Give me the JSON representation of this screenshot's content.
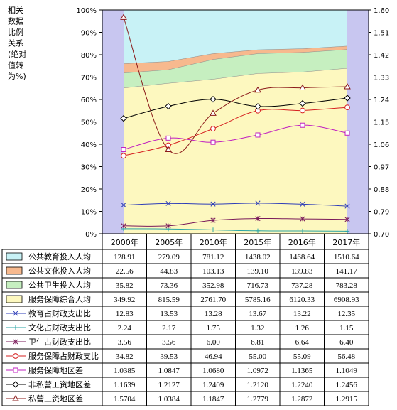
{
  "chart_data": {
    "type": "area",
    "ylabel_lines": [
      "相关",
      "数据",
      "比例",
      "关系",
      "(绝对",
      "值转",
      "为%)"
    ],
    "categories": [
      "2000年",
      "2005年",
      "2010年",
      "2015年",
      "2016年",
      "2017年"
    ],
    "y_left": {
      "ylim": [
        0,
        100
      ],
      "ticks": [
        "0%",
        "10%",
        "20%",
        "30%",
        "40%",
        "50%",
        "60%",
        "70%",
        "80%",
        "90%",
        "100%"
      ]
    },
    "y_right": {
      "ylim": [
        0.7,
        1.6
      ],
      "ticks": [
        "0.70",
        "0.79",
        "0.88",
        "0.97",
        "1.06",
        "1.15",
        "1.24",
        "1.33",
        "1.42",
        "1.51",
        "1.60"
      ]
    },
    "grid": "none",
    "legend": "data-table-below",
    "stacked_area_series": [
      {
        "name": "公共教育投入人均",
        "color": "#c8f2f6",
        "values": [
          128.91,
          279.09,
          781.12,
          1438.02,
          1468.64,
          1510.64
        ],
        "labels": [
          "128.91",
          "279.09",
          "781.12",
          "1438.02",
          "1468.64",
          "1510.64"
        ]
      },
      {
        "name": "公共文化投入人均",
        "color": "#f7b98e",
        "values": [
          22.56,
          44.83,
          103.13,
          139.1,
          139.83,
          141.17
        ],
        "labels": [
          "22.56",
          "44.83",
          "103.13",
          "139.10",
          "139.83",
          "141.17"
        ]
      },
      {
        "name": "公共卫生投入人均",
        "color": "#c6efc0",
        "values": [
          35.82,
          73.36,
          352.98,
          716.73,
          737.28,
          783.28
        ],
        "labels": [
          "35.82",
          "73.36",
          "352.98",
          "716.73",
          "737.28",
          "783.28"
        ]
      },
      {
        "name": "服务保障综合人均",
        "color": "#fdf8bf",
        "values": [
          349.92,
          815.59,
          2761.7,
          5785.16,
          6120.33,
          6908.93
        ],
        "labels": [
          "349.92",
          "815.59",
          "2761.70",
          "5785.16",
          "6120.33",
          "6908.93"
        ]
      }
    ],
    "line_series": [
      {
        "name": "教育占财政支出比",
        "axis": "left",
        "color": "#2e3db8",
        "marker": "x",
        "values": [
          12.83,
          13.53,
          13.28,
          13.67,
          13.22,
          12.35
        ],
        "labels": [
          "12.83",
          "13.53",
          "13.28",
          "13.67",
          "13.22",
          "12.35"
        ]
      },
      {
        "name": "文化占财政支出比",
        "axis": "left",
        "color": "#2aa5a5",
        "marker": "plus",
        "values": [
          2.24,
          2.17,
          1.75,
          1.32,
          1.26,
          1.15
        ],
        "labels": [
          "2.24",
          "2.17",
          "1.75",
          "1.32",
          "1.26",
          "1.15"
        ]
      },
      {
        "name": "卫生占财政支出比",
        "axis": "left",
        "color": "#7a1a5a",
        "marker": "star",
        "values": [
          3.56,
          3.56,
          6.0,
          6.81,
          6.64,
          6.4
        ],
        "labels": [
          "3.56",
          "3.56",
          "6.00",
          "6.81",
          "6.64",
          "6.40"
        ]
      },
      {
        "name": "服务保障占财政支比",
        "axis": "left",
        "color": "#d62020",
        "marker": "circle",
        "values": [
          34.82,
          39.53,
          46.94,
          55.0,
          55.09,
          56.48
        ],
        "labels": [
          "34.82",
          "39.53",
          "46.94",
          "55.00",
          "55.09",
          "56.48"
        ]
      },
      {
        "name": "服务保障地区差",
        "axis": "right",
        "color": "#c020c0",
        "marker": "square",
        "values": [
          1.0385,
          1.0847,
          1.068,
          1.0972,
          1.1365,
          1.1049
        ],
        "labels": [
          "1.0385",
          "1.0847",
          "1.0680",
          "1.0972",
          "1.1365",
          "1.1049"
        ]
      },
      {
        "name": "非私营工资地区差",
        "axis": "right",
        "color": "#000000",
        "marker": "diamond",
        "values": [
          1.1639,
          1.2127,
          1.2409,
          1.212,
          1.224,
          1.2456
        ],
        "labels": [
          "1.1639",
          "1.2127",
          "1.2409",
          "1.2120",
          "1.2240",
          "1.2456"
        ]
      },
      {
        "name": "私营工资地区差",
        "axis": "right",
        "color": "#8b1a1a",
        "marker": "triangle",
        "values": [
          1.5704,
          1.0384,
          1.1847,
          1.2779,
          1.2872,
          1.2915
        ],
        "labels": [
          "1.5704",
          "1.0384",
          "1.1847",
          "1.2779",
          "1.2872",
          "1.2915"
        ]
      }
    ],
    "colors": {
      "side_band": "#c8c6f0",
      "border": "#000000"
    }
  }
}
